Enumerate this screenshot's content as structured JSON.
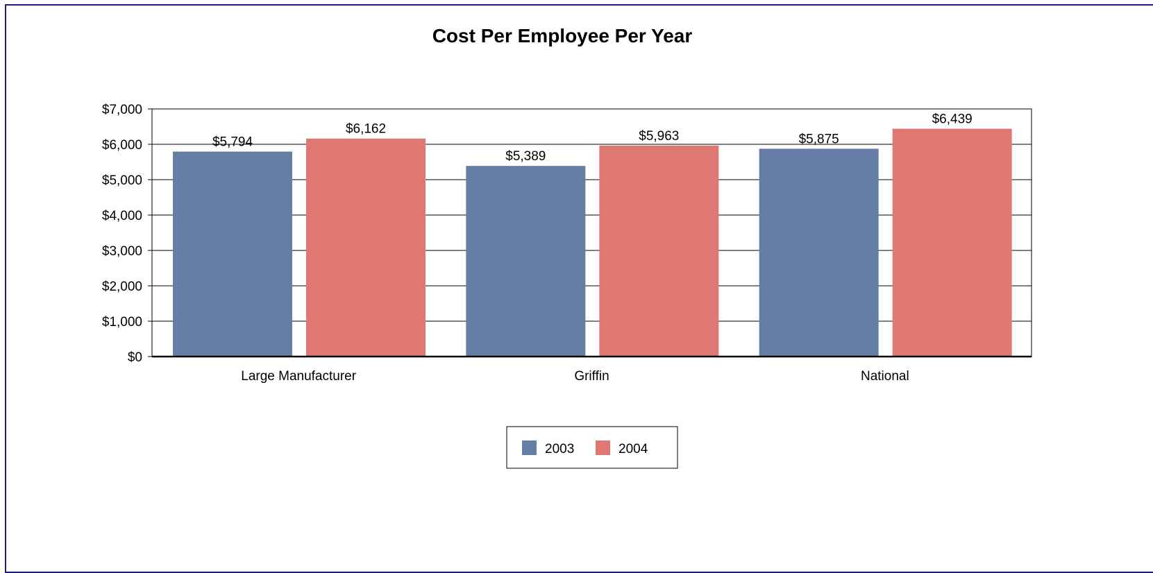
{
  "chart_data": {
    "type": "bar",
    "title": "Cost Per Employee Per Year",
    "xlabel": "",
    "ylabel": "",
    "categories": [
      "Large Manufacturer",
      "Griffin",
      "National"
    ],
    "series": [
      {
        "name": "2003",
        "values": [
          5794,
          5389,
          5875
        ],
        "labels": [
          "$5,794",
          "$5,389",
          "$5,875"
        ],
        "color": "#667ea6"
      },
      {
        "name": "2004",
        "values": [
          6162,
          5963,
          6439
        ],
        "labels": [
          "$6,162",
          "$5,963",
          "$6,439"
        ],
        "color": "#df7873"
      }
    ],
    "ylim": [
      0,
      7000
    ],
    "yticks": [
      0,
      1000,
      2000,
      3000,
      4000,
      5000,
      6000,
      7000
    ],
    "ytick_labels": [
      "$0",
      "$1,000",
      "$2,000",
      "$3,000",
      "$4,000",
      "$5,000",
      "$6,000",
      "$7,000"
    ],
    "grid": true,
    "legend_position": "bottom-center",
    "frame_color": "#1a1a8c"
  }
}
